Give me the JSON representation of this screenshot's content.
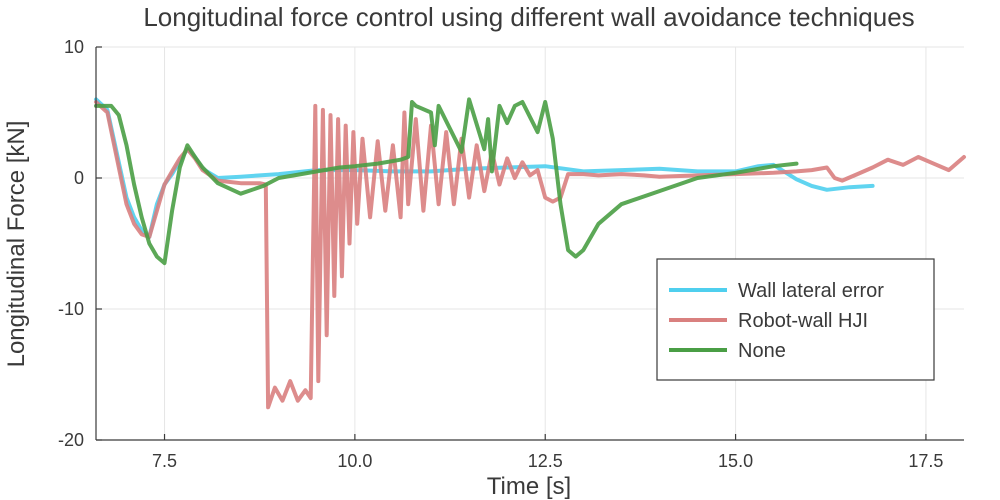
{
  "chart_data": {
    "type": "line",
    "title": "Longitudinal force control using different wall avoidance techniques",
    "xlabel": "Time [s]",
    "ylabel": "Longitudinal Force [kN]",
    "xlim": [
      6.6,
      18.0
    ],
    "ylim": [
      -20,
      10
    ],
    "xticks": [
      7.5,
      10.0,
      12.5,
      15.0,
      17.5
    ],
    "xtick_labels": [
      "7.5",
      "10.0",
      "12.5",
      "15.0",
      "17.5"
    ],
    "yticks": [
      -20,
      -10,
      0,
      10
    ],
    "ytick_labels": [
      "-20",
      "-10",
      "0",
      "10"
    ],
    "grid": true,
    "legend_position": "bottom-right",
    "series": [
      {
        "name": "Wall lateral error",
        "color": "#4fcfee",
        "x": [
          6.6,
          6.75,
          6.9,
          7.0,
          7.1,
          7.2,
          7.3,
          7.4,
          7.5,
          7.6,
          7.7,
          7.8,
          7.9,
          8.0,
          8.2,
          8.5,
          9.0,
          9.5,
          10.0,
          10.5,
          11.0,
          11.5,
          12.0,
          12.5,
          13.0,
          13.5,
          14.0,
          14.5,
          15.0,
          15.3,
          15.5,
          15.8,
          16.0,
          16.2,
          16.5,
          16.8
        ],
        "y": [
          6.0,
          5.2,
          1.2,
          -1.5,
          -3.0,
          -4.0,
          -4.5,
          -2.0,
          -0.5,
          0.3,
          1.3,
          2.2,
          1.6,
          0.7,
          0.0,
          0.1,
          0.3,
          0.6,
          0.6,
          0.5,
          0.5,
          0.7,
          0.8,
          0.9,
          0.5,
          0.6,
          0.7,
          0.5,
          0.5,
          0.9,
          1.0,
          -0.1,
          -0.6,
          -0.9,
          -0.7,
          -0.6
        ]
      },
      {
        "name": "Robot-wall HJI",
        "color": "#d9807f",
        "x": [
          6.6,
          6.75,
          6.9,
          7.0,
          7.1,
          7.2,
          7.3,
          7.4,
          7.5,
          7.6,
          7.7,
          7.8,
          7.9,
          8.0,
          8.2,
          8.5,
          8.75,
          8.83,
          8.86,
          8.95,
          9.05,
          9.15,
          9.25,
          9.35,
          9.42,
          9.48,
          9.52,
          9.58,
          9.63,
          9.68,
          9.73,
          9.78,
          9.83,
          9.88,
          9.93,
          9.98,
          10.03,
          10.1,
          10.2,
          10.3,
          10.4,
          10.5,
          10.6,
          10.65,
          10.7,
          10.8,
          10.9,
          11.0,
          11.1,
          11.2,
          11.3,
          11.4,
          11.5,
          11.6,
          11.7,
          11.8,
          11.9,
          12.0,
          12.1,
          12.2,
          12.3,
          12.4,
          12.5,
          12.6,
          12.7,
          12.8,
          13.0,
          13.2,
          13.5,
          13.8,
          14.0,
          14.5,
          15.0,
          15.5,
          15.8,
          16.0,
          16.2,
          16.3,
          16.4,
          16.6,
          16.8,
          17.0,
          17.2,
          17.4,
          17.6,
          17.8,
          18.0
        ],
        "y": [
          5.8,
          5.0,
          0.8,
          -2.0,
          -3.5,
          -4.3,
          -4.5,
          -2.5,
          -0.5,
          0.5,
          1.5,
          2.2,
          1.5,
          0.6,
          -0.2,
          -0.4,
          -0.4,
          -0.5,
          -17.5,
          -16.0,
          -17.0,
          -15.5,
          -17.0,
          -16.2,
          -16.8,
          5.5,
          -15.5,
          5.2,
          -12.0,
          4.8,
          -9.0,
          4.5,
          -7.5,
          4.0,
          -5.0,
          3.5,
          -3.5,
          3.0,
          -3.0,
          2.8,
          -2.5,
          2.5,
          -3.0,
          5.0,
          -2.0,
          4.5,
          -2.5,
          4.0,
          -2.0,
          3.5,
          -2.0,
          3.0,
          -1.5,
          2.5,
          -1.0,
          2.0,
          -0.5,
          1.5,
          0.0,
          1.2,
          0.2,
          0.6,
          -1.5,
          -1.8,
          -1.5,
          0.3,
          0.3,
          0.2,
          0.3,
          0.2,
          0.1,
          0.2,
          0.3,
          0.4,
          0.5,
          0.6,
          0.8,
          0.0,
          -0.2,
          0.3,
          0.8,
          1.4,
          1.0,
          1.6,
          1.1,
          0.6,
          1.6
        ]
      },
      {
        "name": "None",
        "color": "#4a9e45",
        "x": [
          6.6,
          6.8,
          6.9,
          7.0,
          7.1,
          7.2,
          7.3,
          7.4,
          7.5,
          7.6,
          7.7,
          7.8,
          7.9,
          8.0,
          8.2,
          8.5,
          8.8,
          9.0,
          9.2,
          9.5,
          9.8,
          10.0,
          10.3,
          10.6,
          10.7,
          10.75,
          10.8,
          11.0,
          11.05,
          11.1,
          11.4,
          11.5,
          11.7,
          11.75,
          11.8,
          11.9,
          12.0,
          12.1,
          12.2,
          12.4,
          12.5,
          12.6,
          12.7,
          12.8,
          12.9,
          13.0,
          13.2,
          13.5,
          14.0,
          14.5,
          15.0,
          15.5,
          15.8
        ],
        "y": [
          5.5,
          5.5,
          4.8,
          2.5,
          -0.5,
          -3.0,
          -5.0,
          -6.0,
          -6.5,
          -2.5,
          0.8,
          2.5,
          1.6,
          0.8,
          -0.4,
          -1.2,
          -0.6,
          0.0,
          0.2,
          0.5,
          0.8,
          0.9,
          1.1,
          1.4,
          1.6,
          5.8,
          5.5,
          5.0,
          2.5,
          5.5,
          2.0,
          6.0,
          2.2,
          4.5,
          0.5,
          5.5,
          4.2,
          5.5,
          5.8,
          3.5,
          5.8,
          3.0,
          -2.0,
          -5.5,
          -6.0,
          -5.5,
          -3.5,
          -2.0,
          -1.0,
          0.0,
          0.4,
          0.9,
          1.1
        ]
      }
    ]
  }
}
